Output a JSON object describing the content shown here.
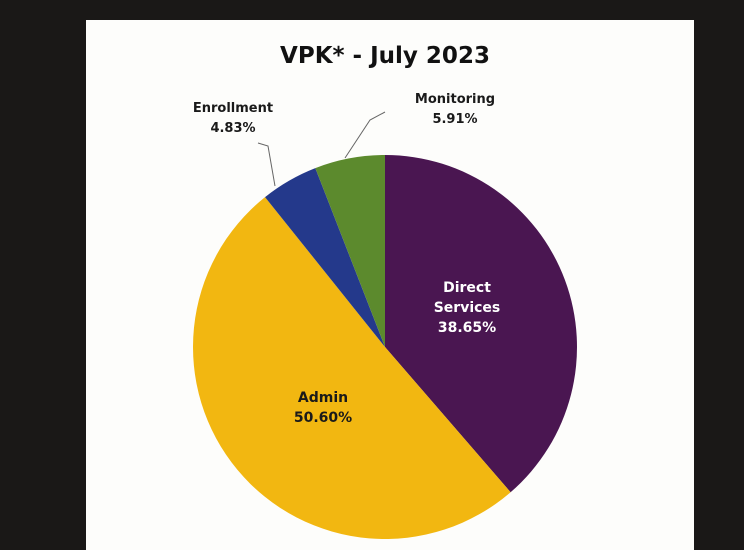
{
  "chart_data": {
    "type": "pie",
    "title": "VPK* - July 2023",
    "categories": [
      "Direct Services",
      "Admin",
      "Enrollment",
      "Monitoring"
    ],
    "values": [
      38.65,
      50.6,
      4.83,
      5.91
    ],
    "value_labels": [
      "38.65%",
      "50.60%",
      "4.83%",
      "5.91%"
    ],
    "colors": [
      "#4a1651",
      "#f2b711",
      "#24398b",
      "#5c8a2d"
    ]
  }
}
